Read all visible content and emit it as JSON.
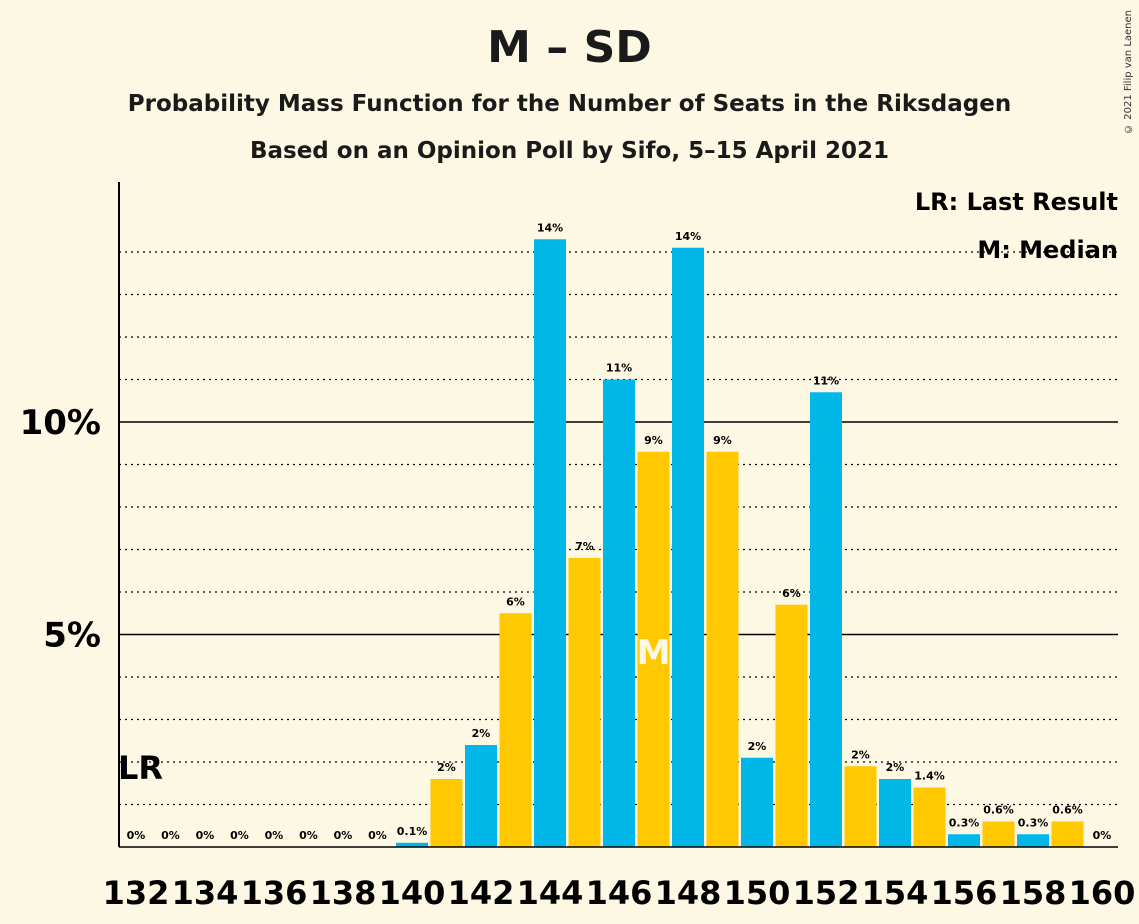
{
  "title": "M – SD",
  "subtitle1": "Probability Mass Function for the Number of Seats in the Riksdagen",
  "subtitle2": "Based on an Opinion Poll by Sifo, 5–15 April 2021",
  "copyright": "© 2021 Filip van Laenen",
  "legend": {
    "lr": "LR: Last Result",
    "median": "M: Median"
  },
  "lr_label": "LR",
  "median_label": "M",
  "colors": {
    "blue": "#00b7e8",
    "yellow": "#ffc800",
    "background": "#fdf8e4"
  },
  "chart_data": {
    "type": "bar",
    "x": [
      132,
      133,
      134,
      135,
      136,
      137,
      138,
      139,
      140,
      141,
      142,
      143,
      144,
      145,
      146,
      147,
      148,
      149,
      150,
      151,
      152,
      153,
      154,
      155,
      156,
      157,
      158,
      159,
      160
    ],
    "values": [
      0,
      0,
      0,
      0,
      0,
      0,
      0,
      0,
      0.1,
      1.6,
      2.4,
      5.5,
      14.3,
      6.8,
      11.0,
      9.3,
      14.1,
      9.3,
      2.1,
      5.7,
      10.7,
      1.9,
      1.6,
      1.4,
      0.3,
      0.6,
      0.3,
      0.6,
      0
    ],
    "labels": [
      "0%",
      "0%",
      "0%",
      "0%",
      "0%",
      "0%",
      "0%",
      "0%",
      "0.1%",
      "2%",
      "2%",
      "6%",
      "14%",
      "7%",
      "11%",
      "9%",
      "14%",
      "9%",
      "2%",
      "6%",
      "11%",
      "2%",
      "2%",
      "1.4%",
      "0.3%",
      "0.6%",
      "0.3%",
      "0.6%",
      "0%"
    ],
    "x_ticks": [
      "132",
      "134",
      "136",
      "138",
      "140",
      "142",
      "144",
      "146",
      "148",
      "150",
      "152",
      "154",
      "156",
      "158",
      "160"
    ],
    "y_ticks": [
      "5%",
      "10%"
    ],
    "ylim": [
      0,
      15.6
    ],
    "last_result": 132,
    "median": 147
  }
}
